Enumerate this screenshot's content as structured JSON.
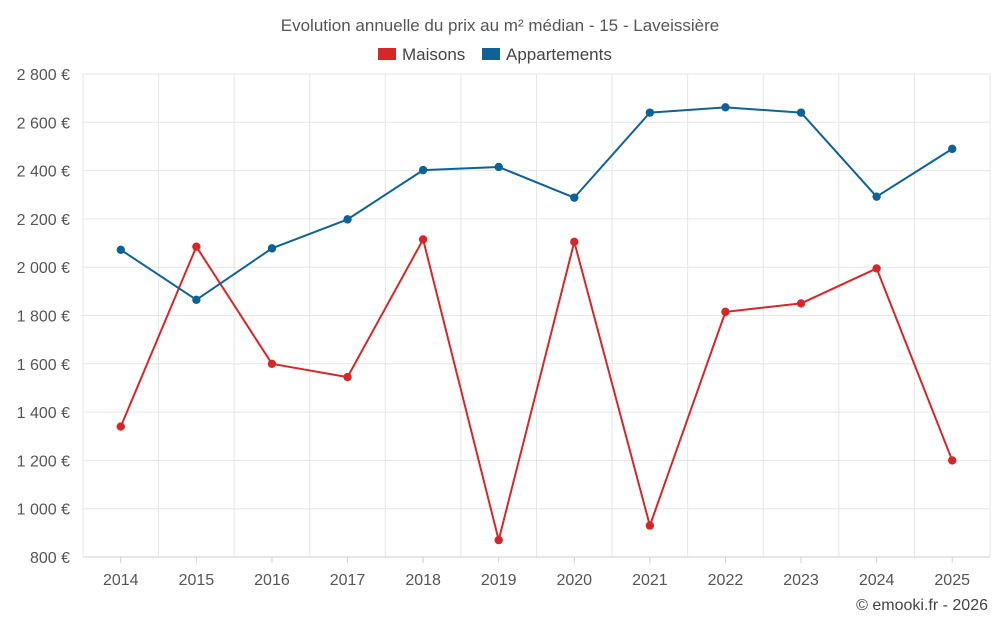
{
  "chart_data": {
    "type": "line",
    "title": "Evolution annuelle du prix au m² médian - 15 - Laveissière",
    "categories": [
      "2014",
      "2015",
      "2016",
      "2017",
      "2018",
      "2019",
      "2020",
      "2021",
      "2022",
      "2023",
      "2024",
      "2025"
    ],
    "series": [
      {
        "name": "Maisons",
        "color": "#d62728",
        "values": [
          1340,
          2085,
          1600,
          1545,
          2115,
          870,
          2105,
          930,
          1815,
          1850,
          1995,
          1200
        ]
      },
      {
        "name": "Appartements",
        "color": "#0e6296",
        "values": [
          2072,
          1865,
          2078,
          2198,
          2402,
          2415,
          2288,
          2640,
          2662,
          2640,
          2292,
          2490
        ]
      }
    ],
    "ylim": [
      800,
      2800
    ],
    "yticks": [
      800,
      1000,
      1200,
      1400,
      1600,
      1800,
      2000,
      2200,
      2400,
      2600,
      2800
    ],
    "ytick_labels": [
      "800 €",
      "1 000 €",
      "1 200 €",
      "1 400 €",
      "1 600 €",
      "1 800 €",
      "2 000 €",
      "2 200 €",
      "2 400 €",
      "2 600 €",
      "2 800 €"
    ],
    "xlabel": "",
    "ylabel": "",
    "grid": true,
    "legend_position": "top-center"
  },
  "credit": "© emooki.fr - 2026"
}
